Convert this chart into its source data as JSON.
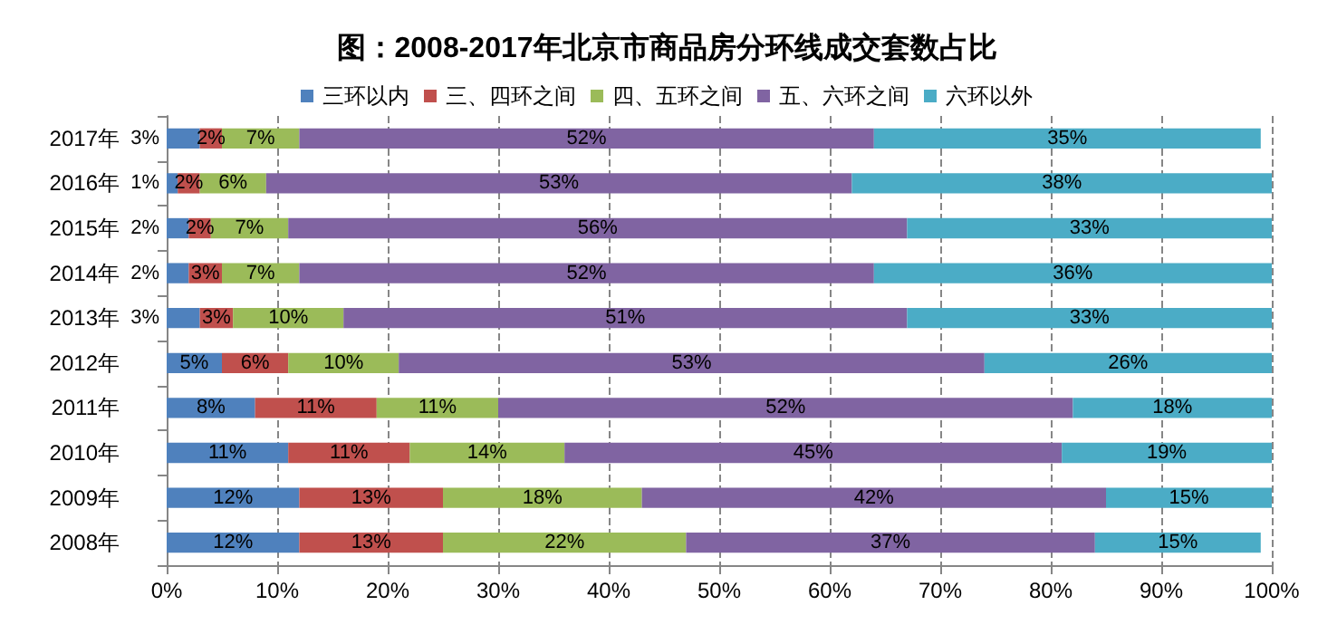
{
  "chart_data": {
    "type": "bar",
    "orientation": "horizontal",
    "stacked": true,
    "title": "图：2008-2017年北京市商品房分环线成交套数占比",
    "categories": [
      "2017年",
      "2016年",
      "2015年",
      "2014年",
      "2013年",
      "2012年",
      "2011年",
      "2010年",
      "2009年",
      "2008年"
    ],
    "series": [
      {
        "name": "三环以内",
        "color": "#4f81bd",
        "values": [
          3,
          1,
          2,
          2,
          3,
          5,
          8,
          11,
          12,
          12
        ],
        "value_labels": [
          "3%",
          "1%",
          "2%",
          "2%",
          "3%",
          "5%",
          "8%",
          "11%",
          "12%",
          "12%"
        ]
      },
      {
        "name": "三、四环之间",
        "color": "#c0504d",
        "values": [
          2,
          2,
          2,
          3,
          3,
          6,
          11,
          11,
          13,
          13
        ],
        "value_labels": [
          "2%",
          "2%",
          "2%",
          "3%",
          "3%",
          "6%",
          "11%",
          "11%",
          "13%",
          "13%"
        ]
      },
      {
        "name": "四、五环之间",
        "color": "#9bbb59",
        "values": [
          7,
          6,
          7,
          7,
          10,
          10,
          11,
          14,
          18,
          22
        ],
        "value_labels": [
          "7%",
          "6%",
          "7%",
          "7%",
          "10%",
          "10%",
          "11%",
          "14%",
          "18%",
          "22%"
        ]
      },
      {
        "name": "五、六环之间",
        "color": "#8064a2",
        "values": [
          52,
          53,
          56,
          52,
          51,
          53,
          52,
          45,
          42,
          37
        ],
        "value_labels": [
          "52%",
          "53%",
          "56%",
          "52%",
          "51%",
          "53%",
          "52%",
          "45%",
          "42%",
          "37%"
        ]
      },
      {
        "name": "六环以外",
        "color": "#4bacc6",
        "values": [
          35,
          38,
          33,
          36,
          33,
          26,
          18,
          19,
          15,
          15
        ],
        "value_labels": [
          "35%",
          "38%",
          "33%",
          "36%",
          "33%",
          "26%",
          "18%",
          "19%",
          "15%",
          "15%"
        ]
      }
    ],
    "xlim": [
      0,
      100
    ],
    "xticks": [
      {
        "value": 0,
        "label": "0%"
      },
      {
        "value": 10,
        "label": "10%"
      },
      {
        "value": 20,
        "label": "20%"
      },
      {
        "value": 30,
        "label": "30%"
      },
      {
        "value": 40,
        "label": "40%"
      },
      {
        "value": 50,
        "label": "50%"
      },
      {
        "value": 60,
        "label": "60%"
      },
      {
        "value": 70,
        "label": "70%"
      },
      {
        "value": 80,
        "label": "80%"
      },
      {
        "value": 90,
        "label": "90%"
      },
      {
        "value": 100,
        "label": "100%"
      }
    ],
    "grid": "x",
    "legend": "top"
  }
}
